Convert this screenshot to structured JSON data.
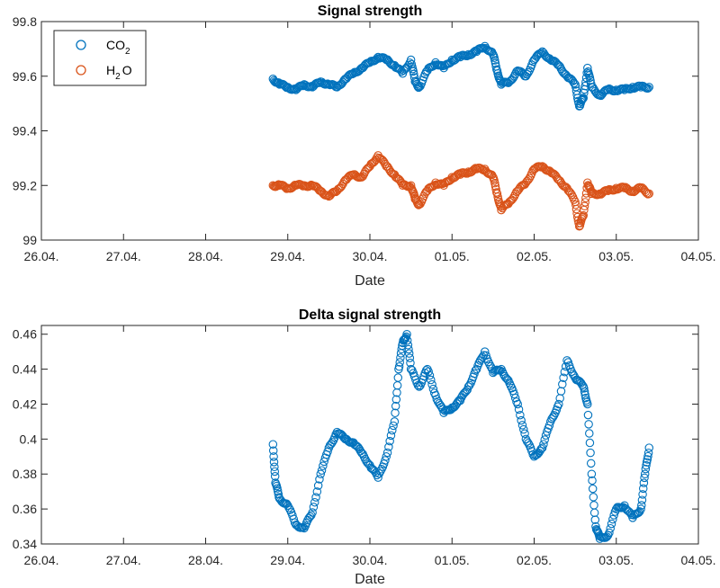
{
  "chart_data": [
    {
      "type": "scatter",
      "title": "Signal strength",
      "xlabel": "Date",
      "ylabel": "",
      "xlim": [
        "26.04.",
        "04.05."
      ],
      "ylim": [
        99,
        99.8
      ],
      "x_ticks": [
        "26.04.",
        "27.04.",
        "28.04.",
        "29.04.",
        "30.04.",
        "01.05.",
        "02.05.",
        "03.05.",
        "04.05."
      ],
      "y_ticks": [
        "99",
        "99.2",
        "99.4",
        "99.6",
        "99.8"
      ],
      "grid": false,
      "legend_position": "top-left",
      "series": [
        {
          "name": "CO2",
          "legend_label": {
            "main": "CO",
            "sub": "2"
          },
          "color": "#0072BD",
          "marker": "circle",
          "points": [
            [
              "28.82",
              99.59
            ],
            [
              "28.9",
              99.57
            ],
            [
              "29.0",
              99.56
            ],
            [
              "29.1",
              99.55
            ],
            [
              "29.2",
              99.57
            ],
            [
              "29.3",
              99.56
            ],
            [
              "29.4",
              99.58
            ],
            [
              "29.5",
              99.57
            ],
            [
              "29.6",
              99.56
            ],
            [
              "29.7",
              99.59
            ],
            [
              "29.8",
              99.61
            ],
            [
              "29.9",
              99.63
            ],
            [
              "30.0",
              99.65
            ],
            [
              "30.1",
              99.67
            ],
            [
              "30.2",
              99.66
            ],
            [
              "30.3",
              99.64
            ],
            [
              "30.4",
              99.61
            ],
            [
              "30.5",
              99.66
            ],
            [
              "30.55",
              99.58
            ],
            [
              "30.6",
              99.56
            ],
            [
              "30.7",
              99.62
            ],
            [
              "30.8",
              99.65
            ],
            [
              "30.9",
              99.63
            ],
            [
              "31.0",
              99.66
            ],
            [
              "31.1",
              99.67
            ],
            [
              "31.2",
              99.68
            ],
            [
              "31.3",
              99.69
            ],
            [
              "31.4",
              99.71
            ],
            [
              "31.5",
              99.68
            ],
            [
              "31.55",
              99.62
            ],
            [
              "31.6",
              99.57
            ],
            [
              "31.7",
              99.58
            ],
            [
              "31.8",
              99.62
            ],
            [
              "31.9",
              99.6
            ],
            [
              "32.0",
              99.66
            ],
            [
              "32.1",
              99.69
            ],
            [
              "32.2",
              99.66
            ],
            [
              "32.3",
              99.64
            ],
            [
              "32.4",
              99.6
            ],
            [
              "32.5",
              99.57
            ],
            [
              "32.55",
              99.49
            ],
            [
              "32.6",
              99.52
            ],
            [
              "32.65",
              99.63
            ],
            [
              "32.7",
              99.56
            ],
            [
              "32.8",
              99.53
            ],
            [
              "32.9",
              99.55
            ],
            [
              "33.0",
              99.55
            ],
            [
              "33.1",
              99.55
            ],
            [
              "33.2",
              99.56
            ],
            [
              "33.3",
              99.56
            ],
            [
              "33.4",
              99.56
            ]
          ]
        },
        {
          "name": "H2O",
          "legend_label": {
            "main": "H",
            "sub": "2",
            "tail": "O"
          },
          "color": "#D95319",
          "marker": "circle",
          "points": [
            [
              "28.82",
              99.2
            ],
            [
              "28.9",
              99.2
            ],
            [
              "29.0",
              99.19
            ],
            [
              "29.1",
              99.2
            ],
            [
              "29.2",
              99.2
            ],
            [
              "29.3",
              99.2
            ],
            [
              "29.4",
              99.18
            ],
            [
              "29.5",
              99.16
            ],
            [
              "29.6",
              99.18
            ],
            [
              "29.7",
              99.22
            ],
            [
              "29.8",
              99.24
            ],
            [
              "29.9",
              99.23
            ],
            [
              "30.0",
              99.27
            ],
            [
              "30.1",
              99.31
            ],
            [
              "30.2",
              99.27
            ],
            [
              "30.3",
              99.24
            ],
            [
              "30.4",
              99.2
            ],
            [
              "30.5",
              99.2
            ],
            [
              "30.55",
              99.15
            ],
            [
              "30.6",
              99.13
            ],
            [
              "30.7",
              99.18
            ],
            [
              "30.8",
              99.21
            ],
            [
              "30.9",
              99.2
            ],
            [
              "31.0",
              99.23
            ],
            [
              "31.1",
              99.24
            ],
            [
              "31.2",
              99.25
            ],
            [
              "31.3",
              99.26
            ],
            [
              "31.4",
              99.26
            ],
            [
              "31.5",
              99.23
            ],
            [
              "31.55",
              99.17
            ],
            [
              "31.6",
              99.11
            ],
            [
              "31.7",
              99.14
            ],
            [
              "31.8",
              99.18
            ],
            [
              "31.9",
              99.21
            ],
            [
              "32.0",
              99.26
            ],
            [
              "32.1",
              99.27
            ],
            [
              "32.2",
              99.25
            ],
            [
              "32.3",
              99.22
            ],
            [
              "32.4",
              99.19
            ],
            [
              "32.5",
              99.14
            ],
            [
              "32.55",
              99.05
            ],
            [
              "32.6",
              99.09
            ],
            [
              "32.65",
              99.21
            ],
            [
              "32.7",
              99.17
            ],
            [
              "32.8",
              99.17
            ],
            [
              "32.9",
              99.18
            ],
            [
              "33.0",
              99.19
            ],
            [
              "33.1",
              99.19
            ],
            [
              "33.2",
              99.18
            ],
            [
              "33.3",
              99.19
            ],
            [
              "33.4",
              99.17
            ]
          ]
        }
      ]
    },
    {
      "type": "scatter",
      "title": "Delta signal strength",
      "xlabel": "Date",
      "ylabel": "",
      "xlim": [
        "26.04.",
        "04.05."
      ],
      "ylim": [
        0.34,
        0.465
      ],
      "x_ticks": [
        "26.04.",
        "27.04.",
        "28.04.",
        "29.04.",
        "30.04.",
        "01.05.",
        "02.05.",
        "03.05.",
        "04.05."
      ],
      "y_ticks": [
        "0.34",
        "0.36",
        "0.38",
        "0.4",
        "0.42",
        "0.44",
        "0.46"
      ],
      "grid": false,
      "series": [
        {
          "color": "#0072BD",
          "marker": "circle",
          "points": [
            [
              "28.82",
              0.397
            ],
            [
              "28.85",
              0.375
            ],
            [
              "28.9",
              0.366
            ],
            [
              "29.0",
              0.362
            ],
            [
              "29.1",
              0.351
            ],
            [
              "29.2",
              0.349
            ],
            [
              "29.3",
              0.358
            ],
            [
              "29.4",
              0.38
            ],
            [
              "29.5",
              0.395
            ],
            [
              "29.6",
              0.404
            ],
            [
              "29.7",
              0.4
            ],
            [
              "29.8",
              0.398
            ],
            [
              "29.9",
              0.392
            ],
            [
              "30.0",
              0.385
            ],
            [
              "30.1",
              0.378
            ],
            [
              "30.2",
              0.39
            ],
            [
              "30.3",
              0.41
            ],
            [
              "30.35",
              0.44
            ],
            [
              "30.4",
              0.455
            ],
            [
              "30.45",
              0.46
            ],
            [
              "30.5",
              0.44
            ],
            [
              "30.6",
              0.43
            ],
            [
              "30.7",
              0.44
            ],
            [
              "30.8",
              0.425
            ],
            [
              "30.9",
              0.415
            ],
            [
              "31.0",
              0.418
            ],
            [
              "31.1",
              0.422
            ],
            [
              "31.2",
              0.43
            ],
            [
              "31.3",
              0.44
            ],
            [
              "31.4",
              0.45
            ],
            [
              "31.5",
              0.438
            ],
            [
              "31.6",
              0.44
            ],
            [
              "31.7",
              0.432
            ],
            [
              "31.8",
              0.42
            ],
            [
              "31.9",
              0.4
            ],
            [
              "32.0",
              0.39
            ],
            [
              "32.1",
              0.395
            ],
            [
              "32.2",
              0.41
            ],
            [
              "32.3",
              0.42
            ],
            [
              "32.4",
              0.445
            ],
            [
              "32.5",
              0.435
            ],
            [
              "32.6",
              0.43
            ],
            [
              "32.65",
              0.42
            ],
            [
              "32.7",
              0.38
            ],
            [
              "32.75",
              0.35
            ],
            [
              "32.8",
              0.343
            ],
            [
              "32.9",
              0.345
            ],
            [
              "33.0",
              0.36
            ],
            [
              "33.1",
              0.362
            ],
            [
              "33.2",
              0.355
            ],
            [
              "33.3",
              0.36
            ],
            [
              "33.35",
              0.38
            ],
            [
              "33.4",
              0.395
            ]
          ]
        }
      ]
    }
  ]
}
